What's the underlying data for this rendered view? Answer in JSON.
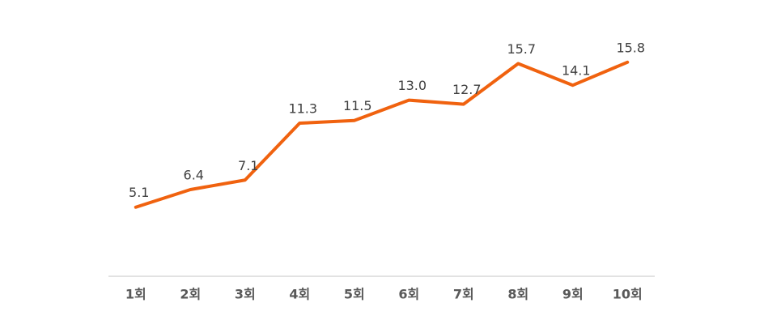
{
  "chart_data": {
    "type": "line",
    "categories": [
      "1회",
      "2회",
      "3회",
      "4회",
      "5회",
      "6회",
      "7회",
      "8회",
      "9회",
      "10회"
    ],
    "values": [
      5.1,
      6.4,
      7.1,
      11.3,
      11.5,
      13.0,
      12.7,
      15.7,
      14.1,
      15.8
    ],
    "value_labels": [
      "5.1",
      "6.4",
      "7.1",
      "11.3",
      "11.5",
      "13.0",
      "12.7",
      "15.7",
      "14.1",
      "15.8"
    ],
    "color": "#f0620f",
    "ylim": [
      0,
      18
    ]
  }
}
